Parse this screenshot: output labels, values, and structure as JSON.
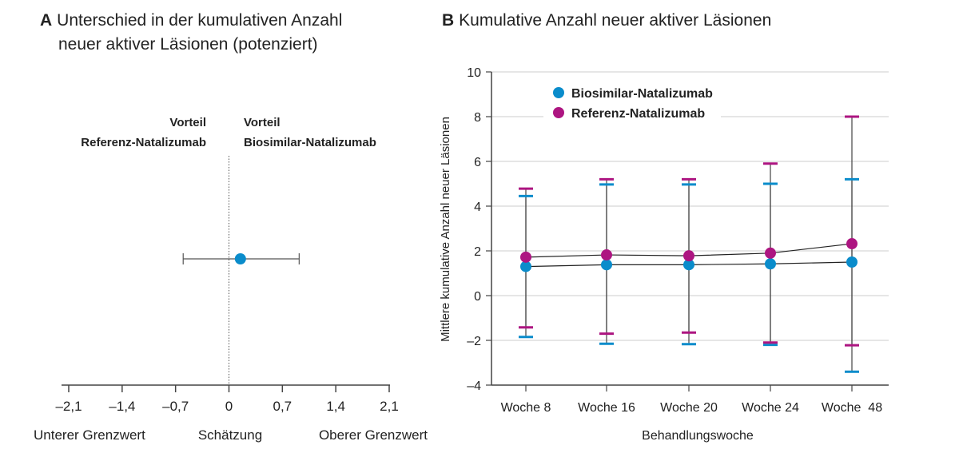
{
  "colors": {
    "biosimilar": "#0a8ccb",
    "reference": "#ad1581",
    "axis": "#444444",
    "grid": "#cccccc"
  },
  "chart_data": [
    {
      "type": "scatter",
      "panel": "A",
      "title_line1": "Unterschied in der kumulativen Anzahl",
      "title_line2": "neuer aktiver Läsionen (potenziert)",
      "left_label_line1": "Vorteil",
      "left_label_line2": "Referenz-Natalizumab",
      "right_label_line1": "Vorteil",
      "right_label_line2": "Biosimilar-Natalizumab",
      "xlim": [
        -2.1,
        2.1
      ],
      "ticks": [
        "–2,1",
        "–1,4",
        "–0,7",
        "0",
        "0,7",
        "1,4",
        "2,1"
      ],
      "tick_values": [
        -2.1,
        -1.4,
        -0.7,
        0,
        0.7,
        1.4,
        2.1
      ],
      "bottom_labels": [
        "Unterer Grenzwert",
        "Schätzung",
        "Oberer Grenzwert"
      ],
      "estimate": 0.15,
      "lower": -0.6,
      "upper": 0.92
    },
    {
      "type": "line",
      "panel": "B",
      "title": "Kumulative Anzahl neuer aktiver Läsionen",
      "xlabel": "Behandlungswoche",
      "ylabel": "Mittlere kumulative Anzahl neuer Läsionen",
      "ylim": [
        -4,
        10
      ],
      "yticks": [
        10,
        8,
        6,
        4,
        2,
        0,
        -2,
        -4
      ],
      "ytick_labels": [
        "10",
        "8",
        "6",
        "4",
        "2",
        "0",
        "–2",
        "–4"
      ],
      "categories": [
        "Woche 8",
        "Woche 16",
        "Woche 20",
        "Woche 24",
        "Woche  48"
      ],
      "legend": "top-left",
      "series": [
        {
          "name": "Biosimilar-Natalizumab",
          "values": [
            1.3,
            1.38,
            1.38,
            1.42,
            1.5
          ],
          "upper": [
            4.45,
            4.97,
            4.97,
            5.0,
            5.2
          ],
          "lower": [
            -1.85,
            -2.15,
            -2.17,
            -2.2,
            -3.4
          ]
        },
        {
          "name": "Referenz-Natalizumab",
          "values": [
            1.72,
            1.82,
            1.78,
            1.9,
            2.32
          ],
          "upper": [
            4.78,
            5.2,
            5.2,
            5.9,
            8.0
          ],
          "lower": [
            -1.42,
            -1.7,
            -1.65,
            -2.1,
            -2.22
          ]
        }
      ]
    }
  ]
}
